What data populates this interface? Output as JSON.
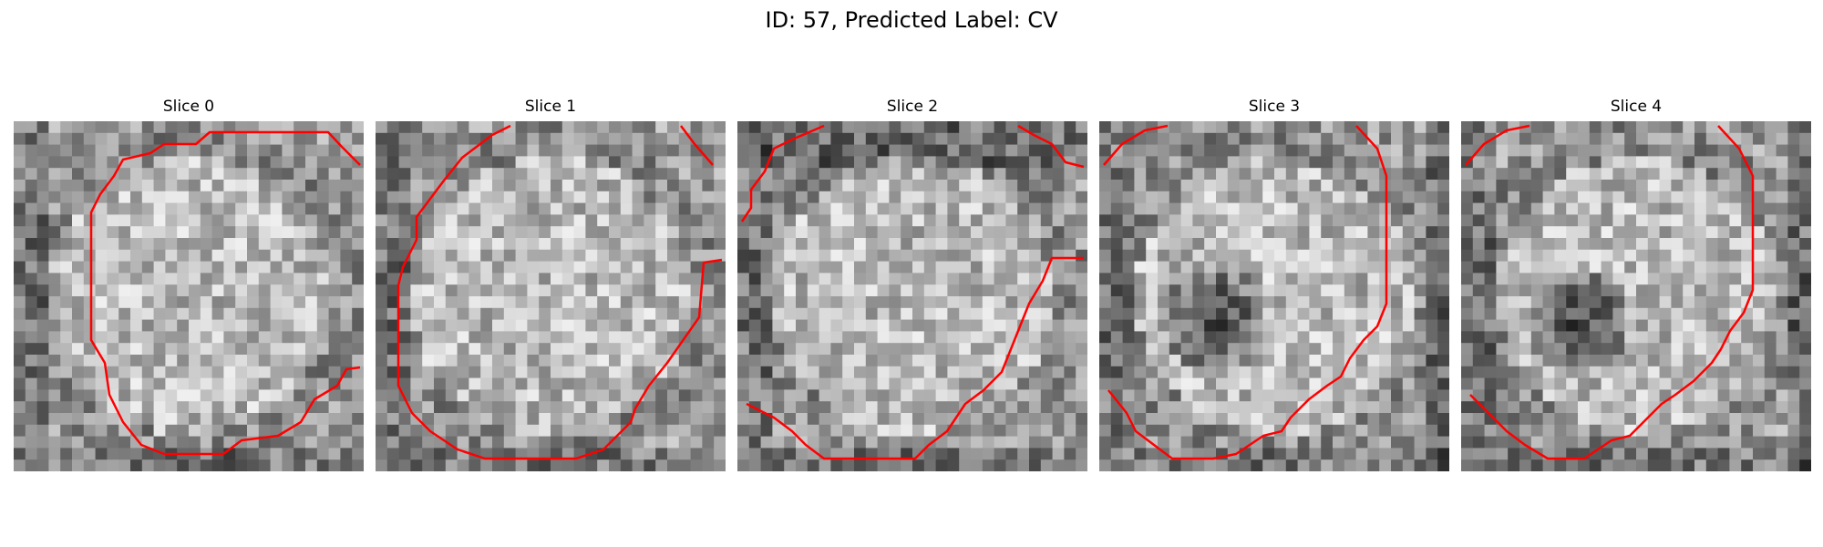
{
  "figure": {
    "title": "ID: 57, Predicted Label: CV"
  },
  "panels": [
    {
      "title": "Slice 0",
      "contour_color": "#ff0000",
      "image_style": "grayscale-noise"
    },
    {
      "title": "Slice 1",
      "contour_color": "#ff0000",
      "image_style": "grayscale-noise"
    },
    {
      "title": "Slice 2",
      "contour_color": "#ff0000",
      "image_style": "grayscale-noise"
    },
    {
      "title": "Slice 3",
      "contour_color": "#ff0000",
      "image_style": "grayscale-noise-dark-center"
    },
    {
      "title": "Slice 4",
      "contour_color": "#ff0000",
      "image_style": "grayscale-noise-dark-center"
    }
  ]
}
